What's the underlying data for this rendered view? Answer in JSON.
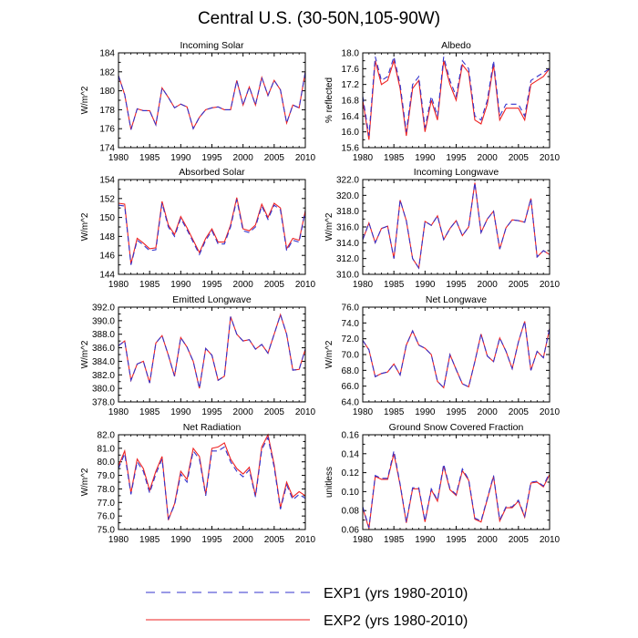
{
  "title": "Central U.S. (30-50N,105-90W)",
  "colors": {
    "exp1": "#3333cc",
    "exp2": "#ee2222",
    "axis": "#000000"
  },
  "legend": [
    {
      "label": "EXP1 (yrs 1980-2010)",
      "color": "#3333cc",
      "dash": true
    },
    {
      "label": "EXP2 (yrs 1980-2010)",
      "color": "#ee2222",
      "dash": false
    }
  ],
  "chart_data": [
    {
      "type": "line",
      "title": "Incoming Solar",
      "ylabel": "W/m^2",
      "ylim": [
        174,
        184
      ],
      "yticks": [
        174,
        176,
        178,
        180,
        182,
        184
      ],
      "ydecimals": 0,
      "xlim": [
        1980,
        2010
      ],
      "xticks": [
        1980,
        1985,
        1990,
        1995,
        2000,
        2005,
        2010
      ],
      "x": [
        1980,
        1981,
        1982,
        1983,
        1984,
        1985,
        1986,
        1987,
        1988,
        1989,
        1990,
        1991,
        1992,
        1993,
        1994,
        1995,
        1996,
        1997,
        1998,
        1999,
        2000,
        2001,
        2002,
        2003,
        2004,
        2005,
        2006,
        2007,
        2008,
        2009,
        2010
      ],
      "series": [
        {
          "name": "EXP1 (yrs 1980-2010)",
          "values": [
            181.6,
            179.6,
            175.9,
            178.1,
            177.9,
            177.9,
            176.4,
            180.3,
            179.3,
            178.2,
            178.6,
            178.3,
            176.0,
            177.2,
            178.0,
            178.2,
            178.3,
            178.0,
            178.0,
            181.1,
            178.5,
            180.4,
            178.5,
            181.4,
            179.5,
            181.1,
            180.1,
            176.6,
            178.5,
            178.2,
            182.0
          ]
        },
        {
          "name": "EXP2 (yrs 1980-2010)",
          "values": [
            181.6,
            179.6,
            175.9,
            178.1,
            177.9,
            177.9,
            176.4,
            180.3,
            179.3,
            178.2,
            178.6,
            178.3,
            176.0,
            177.2,
            178.0,
            178.2,
            178.3,
            178.0,
            178.0,
            181.1,
            178.5,
            180.4,
            178.5,
            181.4,
            179.5,
            181.1,
            180.1,
            176.6,
            178.5,
            178.2,
            182.0
          ]
        }
      ]
    },
    {
      "type": "line",
      "title": "Albedo",
      "ylabel": "% reflected",
      "ylim": [
        15.6,
        18.0
      ],
      "yticks": [
        15.6,
        16.0,
        16.4,
        16.8,
        17.2,
        17.6,
        18.0
      ],
      "ydecimals": 1,
      "xlim": [
        1980,
        2010
      ],
      "xticks": [
        1980,
        1985,
        1990,
        1995,
        2000,
        2005,
        2010
      ],
      "x": [
        1980,
        1981,
        1982,
        1983,
        1984,
        1985,
        1986,
        1987,
        1988,
        1989,
        1990,
        1991,
        1992,
        1993,
        1994,
        1995,
        1996,
        1997,
        1998,
        1999,
        2000,
        2001,
        2002,
        2003,
        2004,
        2005,
        2006,
        2007,
        2008,
        2009,
        2010
      ],
      "series": [
        {
          "name": "EXP1 (yrs 1980-2010)",
          "values": [
            16.9,
            15.9,
            17.9,
            17.3,
            17.4,
            17.9,
            17.2,
            16.0,
            17.2,
            17.4,
            16.1,
            16.9,
            16.4,
            17.9,
            17.3,
            16.9,
            17.8,
            17.6,
            16.4,
            16.3,
            16.8,
            17.8,
            16.4,
            16.7,
            16.7,
            16.7,
            16.4,
            17.3,
            17.4,
            17.5,
            17.6
          ]
        },
        {
          "name": "EXP2 (yrs 1980-2010)",
          "values": [
            16.8,
            15.8,
            17.8,
            17.2,
            17.3,
            17.8,
            17.1,
            15.9,
            17.1,
            17.3,
            16.0,
            16.8,
            16.3,
            17.8,
            17.2,
            16.8,
            17.7,
            17.5,
            16.3,
            16.2,
            16.7,
            17.7,
            16.3,
            16.6,
            16.6,
            16.6,
            16.3,
            17.2,
            17.3,
            17.4,
            17.6
          ]
        }
      ]
    },
    {
      "type": "line",
      "title": "Absorbed Solar",
      "ylabel": "W/m^2",
      "ylim": [
        144,
        154
      ],
      "yticks": [
        144,
        146,
        148,
        150,
        152,
        154
      ],
      "ydecimals": 0,
      "xlim": [
        1980,
        2010
      ],
      "xticks": [
        1980,
        1985,
        1990,
        1995,
        2000,
        2005,
        2010
      ],
      "x": [
        1980,
        1981,
        1982,
        1983,
        1984,
        1985,
        1986,
        1987,
        1988,
        1989,
        1990,
        1991,
        1992,
        1993,
        1994,
        1995,
        1996,
        1997,
        1998,
        1999,
        2000,
        2001,
        2002,
        2003,
        2004,
        2005,
        2006,
        2007,
        2008,
        2009,
        2010
      ],
      "series": [
        {
          "name": "EXP1 (yrs 1980-2010)",
          "values": [
            151.3,
            151.2,
            145.0,
            147.6,
            147.1,
            146.5,
            146.6,
            151.5,
            149.0,
            148.0,
            149.9,
            148.7,
            147.4,
            146.1,
            147.6,
            148.6,
            147.2,
            147.2,
            149.0,
            151.9,
            148.6,
            148.4,
            149.0,
            151.2,
            149.8,
            151.3,
            150.8,
            146.5,
            147.6,
            147.4,
            150.7
          ]
        },
        {
          "name": "EXP2 (yrs 1980-2010)",
          "values": [
            151.5,
            151.4,
            145.1,
            147.8,
            147.3,
            146.7,
            146.8,
            151.7,
            149.2,
            148.2,
            150.1,
            148.9,
            147.6,
            146.3,
            147.8,
            148.8,
            147.4,
            147.4,
            149.2,
            152.1,
            148.8,
            148.6,
            149.2,
            151.4,
            150.0,
            151.5,
            151.0,
            146.7,
            147.8,
            147.6,
            150.7
          ]
        }
      ]
    },
    {
      "type": "line",
      "title": "Incoming Longwave",
      "ylabel": "W/m^2",
      "ylim": [
        310.0,
        322.0
      ],
      "yticks": [
        310.0,
        312.0,
        314.0,
        316.0,
        318.0,
        320.0,
        322.0
      ],
      "ydecimals": 1,
      "xlim": [
        1980,
        2010
      ],
      "xticks": [
        1980,
        1985,
        1990,
        1995,
        2000,
        2005,
        2010
      ],
      "x": [
        1980,
        1981,
        1982,
        1983,
        1984,
        1985,
        1986,
        1987,
        1988,
        1989,
        1990,
        1991,
        1992,
        1993,
        1994,
        1995,
        1996,
        1997,
        1998,
        1999,
        2000,
        2001,
        2002,
        2003,
        2004,
        2005,
        2006,
        2007,
        2008,
        2009,
        2010
      ],
      "series": [
        {
          "name": "EXP1 (yrs 1980-2010)",
          "values": [
            314.4,
            316.5,
            314.0,
            315.8,
            316.1,
            312.0,
            319.4,
            316.8,
            312.0,
            310.8,
            316.7,
            316.2,
            317.4,
            314.4,
            315.8,
            316.8,
            314.9,
            316.0,
            321.6,
            315.3,
            317.0,
            318.0,
            313.2,
            315.9,
            316.9,
            316.8,
            316.6,
            319.6,
            312.2,
            313.0,
            312.5
          ]
        },
        {
          "name": "EXP2 (yrs 1980-2010)",
          "values": [
            314.4,
            316.5,
            314.0,
            315.8,
            316.1,
            312.0,
            319.4,
            316.8,
            312.0,
            310.8,
            316.7,
            316.2,
            317.4,
            314.4,
            315.8,
            316.8,
            314.9,
            316.0,
            321.6,
            315.3,
            317.0,
            318.0,
            313.2,
            315.9,
            316.9,
            316.8,
            316.6,
            319.6,
            312.2,
            313.0,
            312.5
          ]
        }
      ]
    },
    {
      "type": "line",
      "title": "Emitted Longwave",
      "ylabel": "W/m^2",
      "ylim": [
        378.0,
        392.0
      ],
      "yticks": [
        378.0,
        380.0,
        382.0,
        384.0,
        386.0,
        388.0,
        390.0,
        392.0
      ],
      "ydecimals": 1,
      "xlim": [
        1980,
        2010
      ],
      "xticks": [
        1980,
        1985,
        1990,
        1995,
        2000,
        2005,
        2010
      ],
      "x": [
        1980,
        1981,
        1982,
        1983,
        1984,
        1985,
        1986,
        1987,
        1988,
        1989,
        1990,
        1991,
        1992,
        1993,
        1994,
        1995,
        1996,
        1997,
        1998,
        1999,
        2000,
        2001,
        2002,
        2003,
        2004,
        2005,
        2006,
        2007,
        2008,
        2009,
        2010
      ],
      "series": [
        {
          "name": "EXP1 (yrs 1980-2010)",
          "values": [
            386.3,
            387.0,
            381.2,
            383.6,
            384.0,
            380.8,
            386.7,
            387.8,
            384.9,
            381.8,
            387.5,
            386.1,
            384.0,
            380.0,
            385.9,
            384.9,
            381.2,
            381.8,
            390.6,
            388.0,
            387.0,
            387.2,
            385.8,
            386.5,
            385.2,
            388.0,
            390.9,
            388.0,
            382.7,
            382.8,
            385.8
          ]
        },
        {
          "name": "EXP2 (yrs 1980-2010)",
          "values": [
            386.3,
            387.0,
            381.2,
            383.6,
            384.0,
            380.8,
            386.7,
            387.8,
            384.9,
            381.8,
            387.5,
            386.1,
            384.0,
            380.0,
            385.9,
            384.9,
            381.2,
            381.8,
            390.6,
            388.0,
            387.0,
            387.2,
            385.8,
            386.5,
            385.2,
            388.0,
            390.9,
            388.0,
            382.7,
            382.8,
            385.8
          ]
        }
      ]
    },
    {
      "type": "line",
      "title": "Net Longwave",
      "ylabel": "W/m^2",
      "ylim": [
        64.0,
        76.0
      ],
      "yticks": [
        64.0,
        66.0,
        68.0,
        70.0,
        72.0,
        74.0,
        76.0
      ],
      "ydecimals": 1,
      "xlim": [
        1980,
        2010
      ],
      "xticks": [
        1980,
        1985,
        1990,
        1995,
        2000,
        2005,
        2010
      ],
      "x": [
        1980,
        1981,
        1982,
        1983,
        1984,
        1985,
        1986,
        1987,
        1988,
        1989,
        1990,
        1991,
        1992,
        1993,
        1994,
        1995,
        1996,
        1997,
        1998,
        1999,
        2000,
        2001,
        2002,
        2003,
        2004,
        2005,
        2006,
        2007,
        2008,
        2009,
        2010
      ],
      "series": [
        {
          "name": "EXP1 (yrs 1980-2010)",
          "values": [
            71.8,
            70.6,
            67.2,
            67.6,
            67.8,
            68.8,
            67.4,
            71.2,
            73.0,
            71.2,
            70.8,
            70.0,
            66.6,
            65.8,
            70.0,
            68.1,
            66.3,
            65.9,
            69.1,
            72.6,
            69.8,
            69.1,
            72.1,
            70.4,
            68.2,
            71.6,
            74.2,
            68.0,
            70.4,
            69.6,
            73.3
          ]
        },
        {
          "name": "EXP2 (yrs 1980-2010)",
          "values": [
            71.8,
            70.6,
            67.2,
            67.6,
            67.8,
            68.8,
            67.4,
            71.2,
            73.0,
            71.2,
            70.8,
            70.0,
            66.6,
            65.8,
            70.0,
            68.1,
            66.3,
            65.9,
            69.1,
            72.6,
            69.8,
            69.1,
            72.1,
            70.4,
            68.2,
            71.6,
            74.2,
            68.0,
            70.4,
            69.6,
            73.3
          ]
        }
      ]
    },
    {
      "type": "line",
      "title": "Net Radiation",
      "ylabel": "W/m^2",
      "ylim": [
        75.0,
        82.0
      ],
      "yticks": [
        75.0,
        76.0,
        77.0,
        78.0,
        79.0,
        80.0,
        81.0,
        82.0
      ],
      "ydecimals": 1,
      "xlim": [
        1980,
        2010
      ],
      "xticks": [
        1980,
        1985,
        1990,
        1995,
        2000,
        2005,
        2010
      ],
      "x": [
        1980,
        1981,
        1982,
        1983,
        1984,
        1985,
        1986,
        1987,
        1988,
        1989,
        1990,
        1991,
        1992,
        1993,
        1994,
        1995,
        1996,
        1997,
        1998,
        1999,
        2000,
        2001,
        2002,
        2003,
        2004,
        2005,
        2006,
        2007,
        2008,
        2009,
        2010
      ],
      "series": [
        {
          "name": "EXP1 (yrs 1980-2010)",
          "values": [
            79.5,
            80.6,
            77.6,
            80.0,
            79.3,
            77.7,
            79.1,
            80.2,
            75.8,
            76.8,
            79.1,
            78.5,
            80.8,
            80.2,
            77.5,
            80.8,
            80.8,
            81.1,
            80.0,
            79.3,
            78.9,
            79.4,
            77.4,
            80.9,
            81.8,
            79.6,
            76.5,
            78.3,
            77.2,
            77.6,
            77.3
          ]
        },
        {
          "name": "EXP2 (yrs 1980-2010)",
          "values": [
            79.7,
            80.8,
            77.7,
            80.2,
            79.5,
            77.9,
            79.3,
            80.4,
            75.7,
            76.9,
            79.3,
            78.7,
            81.0,
            80.4,
            77.6,
            81.0,
            81.1,
            81.4,
            80.2,
            79.5,
            79.1,
            79.6,
            77.5,
            81.1,
            82.0,
            79.8,
            76.6,
            78.5,
            77.4,
            77.8,
            77.5
          ]
        }
      ]
    },
    {
      "type": "line",
      "title": "Ground Snow Covered Fraction",
      "ylabel": "unitless",
      "ylim": [
        0.06,
        0.16
      ],
      "yticks": [
        0.06,
        0.08,
        0.1,
        0.12,
        0.14,
        0.16
      ],
      "ydecimals": 2,
      "xlim": [
        1980,
        2010
      ],
      "xticks": [
        1980,
        1985,
        1990,
        1995,
        2000,
        2005,
        2010
      ],
      "x": [
        1980,
        1981,
        1982,
        1983,
        1984,
        1985,
        1986,
        1987,
        1988,
        1989,
        1990,
        1991,
        1992,
        1993,
        1994,
        1995,
        1996,
        1997,
        1998,
        1999,
        2000,
        2001,
        2002,
        2003,
        2004,
        2005,
        2006,
        2007,
        2008,
        2009,
        2010
      ],
      "series": [
        {
          "name": "EXP1 (yrs 1980-2010)",
          "values": [
            0.084,
            0.062,
            0.117,
            0.114,
            0.114,
            0.143,
            0.108,
            0.068,
            0.104,
            0.104,
            0.069,
            0.103,
            0.091,
            0.129,
            0.103,
            0.097,
            0.124,
            0.113,
            0.072,
            0.069,
            0.093,
            0.117,
            0.07,
            0.084,
            0.084,
            0.091,
            0.074,
            0.11,
            0.111,
            0.106,
            0.12
          ]
        },
        {
          "name": "EXP2 (yrs 1980-2010)",
          "values": [
            0.083,
            0.061,
            0.116,
            0.113,
            0.113,
            0.14,
            0.107,
            0.067,
            0.103,
            0.103,
            0.068,
            0.102,
            0.09,
            0.127,
            0.102,
            0.096,
            0.122,
            0.112,
            0.071,
            0.068,
            0.092,
            0.116,
            0.069,
            0.083,
            0.083,
            0.09,
            0.073,
            0.109,
            0.11,
            0.105,
            0.118
          ]
        }
      ]
    }
  ]
}
